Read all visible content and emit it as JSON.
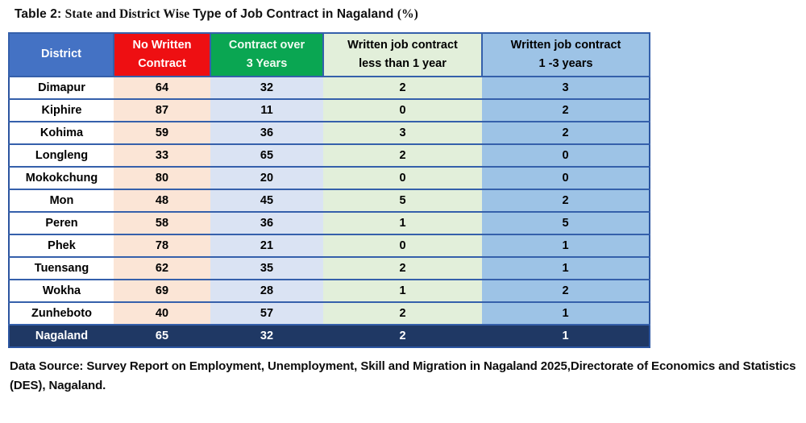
{
  "title": {
    "part1": "Table 2: ",
    "part2": "State and District Wise ",
    "part3": "Type of Job Contract in Nagaland ",
    "part4": "(%)"
  },
  "table": {
    "columns": [
      {
        "id": "district",
        "label_line1": "District",
        "label_line2": "",
        "header_bg": "#4472c4",
        "header_fg": "#ffffff",
        "cell_bg": "#ffffff"
      },
      {
        "id": "no-written-contract",
        "label_line1": "No Written",
        "label_line2": "Contract",
        "header_bg": "#ee0f12",
        "header_fg": "#ffffff",
        "cell_bg": "#fbe5d6"
      },
      {
        "id": "contract-over-3-years",
        "label_line1": "Contract over",
        "label_line2": "3 Years",
        "header_bg": "#0aa652",
        "header_fg": "#f2fbf2",
        "cell_bg": "#dae3f3"
      },
      {
        "id": "written-less-than-1-year",
        "label_line1": "Written job contract",
        "label_line2": "less than 1 year",
        "header_bg": "#e2efda",
        "header_fg": "#000000",
        "cell_bg": "#e2efda"
      },
      {
        "id": "written-1-3-years",
        "label_line1": "Written job contract",
        "label_line2": "1 -3 years",
        "header_bg": "#9dc3e6",
        "header_fg": "#000000",
        "cell_bg": "#9dc3e6"
      }
    ],
    "rows": [
      {
        "district": "Dimapur",
        "values": [
          64,
          32,
          2,
          3
        ]
      },
      {
        "district": "Kiphire",
        "values": [
          87,
          11,
          0,
          2
        ]
      },
      {
        "district": "Kohima",
        "values": [
          59,
          36,
          3,
          2
        ]
      },
      {
        "district": "Longleng",
        "values": [
          33,
          65,
          2,
          0
        ]
      },
      {
        "district": "Mokokchung",
        "values": [
          80,
          20,
          0,
          0
        ]
      },
      {
        "district": "Mon",
        "values": [
          48,
          45,
          5,
          2
        ]
      },
      {
        "district": "Peren",
        "values": [
          58,
          36,
          1,
          5
        ]
      },
      {
        "district": "Phek",
        "values": [
          78,
          21,
          0,
          1
        ]
      },
      {
        "district": "Tuensang",
        "values": [
          62,
          35,
          2,
          1
        ]
      },
      {
        "district": "Wokha",
        "values": [
          69,
          28,
          1,
          2
        ]
      },
      {
        "district": "Zunheboto",
        "values": [
          40,
          57,
          2,
          1
        ]
      }
    ],
    "total_row": {
      "district": "Nagaland",
      "values": [
        65,
        32,
        2,
        1
      ],
      "bg": "#1f3864",
      "fg": "#ffffff"
    }
  },
  "footer": {
    "text": "Data Source: Survey Report on Employment, Unemployment, Skill and Migration in Nagaland 2025,Directorate of Economics and Statistics (DES), Nagaland."
  },
  "colors": {
    "row_border": "#3560ab",
    "outer_border": "#2c55a0",
    "header_district_bg": "#4472c4",
    "header_red_bg": "#ee0f12",
    "header_green_bg": "#0aa652",
    "col_peach_bg": "#fbe5d6",
    "col_lavender_bg": "#dae3f3",
    "col_lightgreen_bg": "#e2efda",
    "col_mediumblue_bg": "#9dc3e6",
    "total_row_bg": "#1f3864"
  }
}
